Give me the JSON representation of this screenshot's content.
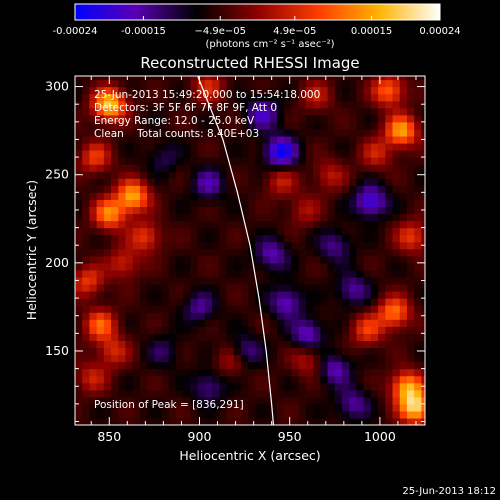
{
  "chart_data": {
    "type": "heatmap",
    "title": "Reconstructed RHESSI Image",
    "xlabel": "Heliocentric X (arcsec)",
    "ylabel": "Heliocentric Y (arcsec)",
    "xlim": [
      831,
      1025
    ],
    "ylim": [
      108,
      306
    ],
    "x_ticks": [
      850,
      900,
      950,
      1000
    ],
    "y_ticks": [
      150,
      200,
      250,
      300
    ],
    "colorbar": {
      "min": -0.00024,
      "max": 0.00024,
      "tick_values": [
        -0.00024,
        -0.00015,
        -4.9e-05,
        4.9e-05,
        0.00015,
        0.00024
      ],
      "tick_labels": [
        "-0.00024",
        "-0.00015",
        "−4.9e−05",
        "4.9e−05",
        "0.00015",
        "0.00024"
      ],
      "unit": "(photons cm⁻² s⁻¹ asec⁻²)",
      "colormap_stops": [
        "#0000ff",
        "#5a00b4",
        "#000000",
        "#8c0000",
        "#ff3c00",
        "#ffb400",
        "#ffffff"
      ]
    },
    "annotations": [
      "25-Jun-2013 15:49:20.000 to 15:54:18.000",
      "Detectors: 3F 5F 6F 7F 8F 9F, Att 0",
      "Energy Range: 12.0 - 25.0 keV",
      "Clean    Total counts: 8.40E+03"
    ],
    "peak_label": "Position of Peak = [836,291]",
    "peak": {
      "x": 836,
      "y": 291
    },
    "limb_points": [
      [
        899,
        306
      ],
      [
        913,
        270
      ],
      [
        921,
        240
      ],
      [
        928,
        210
      ],
      [
        933,
        180
      ],
      [
        937,
        150
      ],
      [
        940,
        120
      ],
      [
        941,
        108
      ]
    ],
    "hotspots": [
      {
        "x": 850,
        "y": 290,
        "value": 0.00024
      },
      {
        "x": 842,
        "y": 260,
        "value": 0.00012
      },
      {
        "x": 863,
        "y": 238,
        "value": 0.00021
      },
      {
        "x": 850,
        "y": 228,
        "value": 0.00018
      },
      {
        "x": 870,
        "y": 215,
        "value": 0.00012
      },
      {
        "x": 858,
        "y": 200,
        "value": 0.0001
      },
      {
        "x": 838,
        "y": 190,
        "value": 0.00012
      },
      {
        "x": 845,
        "y": 165,
        "value": 0.00015
      },
      {
        "x": 852,
        "y": 150,
        "value": 0.0001
      },
      {
        "x": 840,
        "y": 135,
        "value": 9e-05
      },
      {
        "x": 1005,
        "y": 298,
        "value": 0.00016
      },
      {
        "x": 1012,
        "y": 275,
        "value": 0.0002
      },
      {
        "x": 998,
        "y": 262,
        "value": 9e-05
      },
      {
        "x": 1018,
        "y": 215,
        "value": 0.00012
      },
      {
        "x": 1008,
        "y": 172,
        "value": 0.00017
      },
      {
        "x": 993,
        "y": 162,
        "value": 0.00012
      },
      {
        "x": 1015,
        "y": 130,
        "value": 0.0002
      },
      {
        "x": 1020,
        "y": 118,
        "value": 0.00024
      },
      {
        "x": 945,
        "y": 247,
        "value": 9e-05
      },
      {
        "x": 958,
        "y": 230,
        "value": 7e-05
      },
      {
        "x": 972,
        "y": 250,
        "value": 8e-05
      },
      {
        "x": 918,
        "y": 145,
        "value": 8e-05
      },
      {
        "x": 960,
        "y": 145,
        "value": 8e-05
      },
      {
        "x": 905,
        "y": 300,
        "value": 0.0001
      },
      {
        "x": 965,
        "y": 295,
        "value": 8e-05
      }
    ],
    "coldspots": [
      {
        "x": 945,
        "y": 263,
        "value": -0.00018
      },
      {
        "x": 995,
        "y": 235,
        "value": -0.00015
      },
      {
        "x": 935,
        "y": 285,
        "value": -0.00012
      },
      {
        "x": 905,
        "y": 245,
        "value": -0.0001
      },
      {
        "x": 940,
        "y": 205,
        "value": -0.00011
      },
      {
        "x": 975,
        "y": 210,
        "value": -9e-05
      },
      {
        "x": 948,
        "y": 178,
        "value": -0.00012
      },
      {
        "x": 985,
        "y": 185,
        "value": -0.0001
      },
      {
        "x": 900,
        "y": 175,
        "value": -9e-05
      },
      {
        "x": 925,
        "y": 150,
        "value": -0.0001
      },
      {
        "x": 960,
        "y": 160,
        "value": -0.00012
      },
      {
        "x": 975,
        "y": 140,
        "value": -0.00011
      },
      {
        "x": 905,
        "y": 130,
        "value": -9e-05
      },
      {
        "x": 985,
        "y": 120,
        "value": -0.0001
      },
      {
        "x": 880,
        "y": 260,
        "value": -6e-05
      },
      {
        "x": 880,
        "y": 150,
        "value": -6e-05
      }
    ]
  },
  "footer_timestamp": "25-Jun-2013 18:12"
}
